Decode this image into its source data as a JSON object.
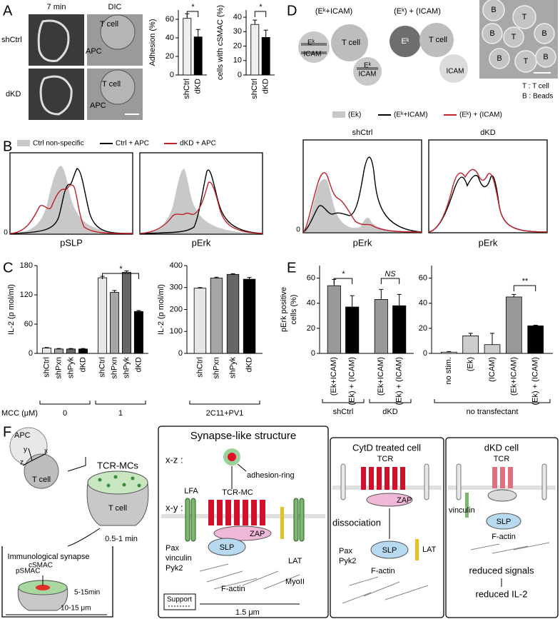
{
  "panel_labels": [
    "A",
    "B",
    "C",
    "D",
    "E",
    "F"
  ],
  "panel_a": {
    "time": "7 min",
    "dic": "DIC",
    "rows": [
      "shCtrl",
      "dKD"
    ],
    "t_cell": "T cell",
    "apc": "APC"
  },
  "panel_b": {
    "legend": [
      "Ctrl non-specific",
      "Ctrl + APC",
      "dKD + APC"
    ],
    "x_labels": [
      "pSLP",
      "pErk"
    ],
    "y_tick": 0
  },
  "panel_d": {
    "schemes": [
      "(Eᵏ+ICAM)",
      "(Eᵏ) + (ICAM)"
    ],
    "ek": "Eᵏ",
    "icam": "ICAM",
    "t_cell": "T cell",
    "micro_labels": [
      "B",
      "T",
      "B",
      "T",
      "B",
      "B",
      "T",
      "B"
    ],
    "key": [
      "T : T cell",
      "B : Beads"
    ],
    "legend": [
      "(Ek)",
      "(Eᵏ+ICAM)",
      "(Eᵏ) + (ICAM)"
    ],
    "titles": [
      "shCtrl",
      "dKD"
    ],
    "x_label": "pErk",
    "y_tick": 0
  },
  "chart_data": [
    {
      "type": "bar",
      "y_label": "Adhesion (%)",
      "categories": [
        "shCtrl",
        "dKD"
      ],
      "values": [
        61,
        41
      ],
      "errors": [
        5,
        8
      ],
      "colors": [
        "#eeeeee",
        "#000000"
      ],
      "ylim": [
        0,
        70
      ],
      "yticks": [
        0,
        20,
        40,
        60
      ],
      "annotations": [
        "*"
      ]
    },
    {
      "type": "bar",
      "y_label": "cells with cSMAC (%)",
      "categories": [
        "shCtrl",
        "dKD"
      ],
      "values": [
        35,
        26
      ],
      "errors": [
        3,
        5
      ],
      "colors": [
        "#eeeeee",
        "#000000"
      ],
      "ylim": [
        0,
        45
      ],
      "yticks": [
        0,
        10,
        20,
        30,
        40
      ],
      "annotations": [
        "*"
      ]
    },
    {
      "type": "bar",
      "y_label": "IL-2 (p mol/ml)",
      "categories": [
        "shCtrl",
        "shPxn",
        "shPyk",
        "dKD",
        "shCtrl",
        "shPxn",
        "shPyk",
        "dKD"
      ],
      "values": [
        11,
        9,
        9,
        9,
        155,
        125,
        166,
        86
      ],
      "errors": [
        1,
        1,
        1,
        1,
        3,
        4,
        3,
        2
      ],
      "colors": [
        "#e6e6e6",
        "#a6a6a6",
        "#666666",
        "#000000"
      ],
      "ylim": [
        0,
        180
      ],
      "yticks": [
        0,
        60,
        120,
        180
      ],
      "group_title": "MCC (μM)",
      "groups": [
        "0",
        "1"
      ],
      "annotations": [
        "*"
      ]
    },
    {
      "type": "bar",
      "y_label": "IL-2 (p mol/ml)",
      "categories": [
        "shCtrl",
        "shPxn",
        "shPyk",
        "dKD"
      ],
      "values": [
        297,
        343,
        360,
        338
      ],
      "errors": [
        3,
        4,
        3,
        8
      ],
      "colors": [
        "#e6e6e6",
        "#a6a6a6",
        "#666666",
        "#000000"
      ],
      "ylim": [
        0,
        400
      ],
      "yticks": [
        0,
        100,
        200,
        300,
        400
      ],
      "groups": [
        "2C11+PV1"
      ]
    },
    {
      "type": "bar",
      "y_label": [
        "pErk positive",
        "cells (%)"
      ],
      "categories": [
        "(Ek+ICAM)",
        "(Ek) + (ICAM)",
        "(Ek+ICAM)",
        "(Ek) + (ICAM)"
      ],
      "values": [
        54,
        37,
        43,
        38
      ],
      "errors": [
        5,
        9,
        8,
        9
      ],
      "colors": [
        "#999999",
        "#000000"
      ],
      "ylim": [
        0,
        70
      ],
      "yticks": [
        0,
        20,
        40,
        60
      ],
      "groups": [
        "shCtrl",
        "dKD"
      ],
      "annotations": [
        "*",
        "NS"
      ]
    },
    {
      "type": "bar",
      "categories": [
        "no stim.",
        "(Ek)",
        "(ICAM)",
        "(Ek+ICAM)",
        "(Ek) + (ICAM)"
      ],
      "values": [
        1,
        14,
        7,
        45,
        22
      ],
      "errors": [
        0.5,
        2,
        9,
        2,
        0.5
      ],
      "colors": [
        "#ffffff",
        "#cccccc",
        "#cccccc",
        "#999999",
        "#000000"
      ],
      "ylim": [
        0,
        70
      ],
      "yticks": [
        0,
        20,
        40,
        60
      ],
      "groups": [
        "no transfectant"
      ],
      "annotations": [
        "**"
      ]
    }
  ],
  "panel_f": {
    "inset": {
      "apc": "APC",
      "axes": [
        "y",
        "z",
        "x"
      ],
      "t_cell": "T cell"
    },
    "mc": {
      "title": "TCR-MCs",
      "t_cell": "T cell",
      "time": "0.5-1 min"
    },
    "is": {
      "title": "Immunological synapse",
      "psmac": "pSMAC",
      "csmac": "cSMAC",
      "time": "5-15min",
      "size": "10-15 μm"
    },
    "synapse": {
      "title": "Synapse-like structure",
      "xz": "x-z :",
      "adhesion": "adhesion-ring",
      "xy": "x-y :",
      "lfa": "LFA",
      "tcr_mc": "TCR-MC",
      "left": [
        "Pax",
        "vinculin",
        "Pyk2"
      ],
      "zap": "ZAP",
      "slp": "SLP",
      "lat": "LAT",
      "factin": "F-actin",
      "myo": "MyoII",
      "support": "Support",
      "size": "1.5 μm"
    },
    "cytd": {
      "title": "CytD treated cell",
      "tcr": "TCR",
      "zap": "ZAP",
      "dissociation": "dissociation",
      "left": [
        "Pax",
        "Pyk2"
      ],
      "slp": "SLP",
      "lat": "LAT",
      "factin": "F-actin"
    },
    "dkd": {
      "title": "dKD cell",
      "tcr": "TCR",
      "vinculin": "vinculin",
      "slp": "SLP",
      "factin": "F-actin",
      "result": [
        "reduced signals",
        "reduced IL-2"
      ]
    }
  }
}
